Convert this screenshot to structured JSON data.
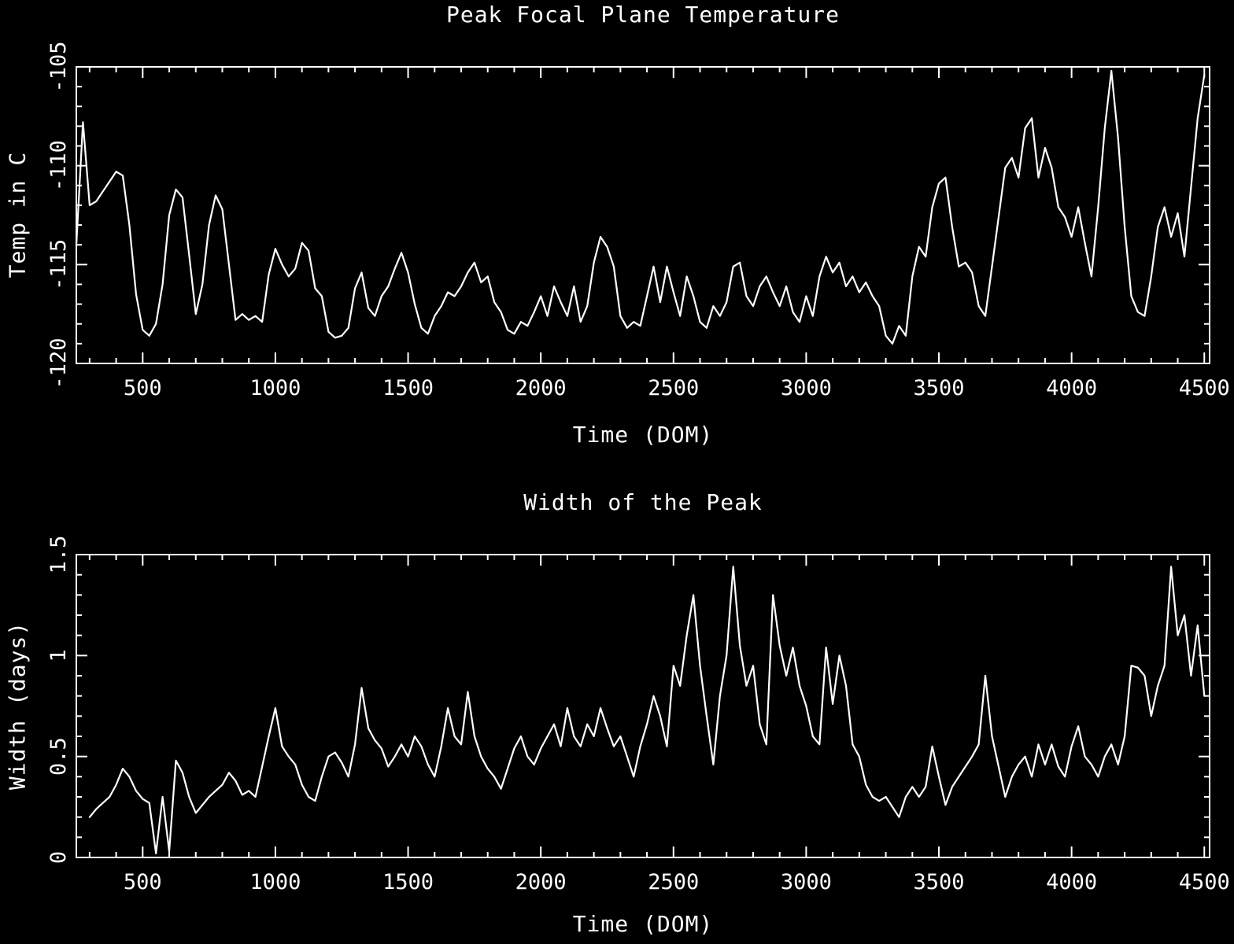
{
  "figure": {
    "background": "#000000",
    "foreground": "#ffffff"
  },
  "chart_data": [
    {
      "type": "line",
      "series_name": "temperature",
      "title": "Peak Focal Plane Temperature",
      "xlabel": "Time (DOM)",
      "ylabel": "Temp in C",
      "grid": false,
      "legend": false,
      "xlim": [
        250,
        4520
      ],
      "ylim": [
        -120,
        -105
      ],
      "xticks": [
        500,
        1000,
        1500,
        2000,
        2500,
        3000,
        3500,
        4000,
        4500
      ],
      "xtick_labels": [
        "500",
        "1000",
        "1500",
        "2000",
        "2500",
        "3000",
        "3500",
        "4000",
        "4500"
      ],
      "x_major_step": 500,
      "x_minor_step": 100,
      "yticks": [
        -120,
        -115,
        -110,
        -105
      ],
      "ytick_labels": [
        "-120",
        "-115",
        "-110",
        "-105"
      ],
      "y_minor_step": 1,
      "x_start": 250,
      "x_step": 25,
      "y": [
        -114.0,
        -107.8,
        -112.0,
        -111.8,
        -111.3,
        -110.8,
        -110.3,
        -110.5,
        -113.0,
        -116.5,
        -118.3,
        -118.6,
        -118.0,
        -116.0,
        -112.5,
        -111.2,
        -111.6,
        -114.5,
        -117.5,
        -116.0,
        -113.0,
        -111.5,
        -112.2,
        -115.0,
        -117.8,
        -117.5,
        -117.8,
        -117.6,
        -117.9,
        -115.5,
        -114.2,
        -115.0,
        -115.6,
        -115.2,
        -113.9,
        -114.3,
        -116.2,
        -116.6,
        -118.4,
        -118.7,
        -118.6,
        -118.2,
        -116.2,
        -115.4,
        -117.2,
        -117.6,
        -116.6,
        -116.1,
        -115.2,
        -114.4,
        -115.4,
        -117.0,
        -118.2,
        -118.5,
        -117.6,
        -117.1,
        -116.4,
        -116.6,
        -116.1,
        -115.4,
        -114.9,
        -115.9,
        -115.6,
        -116.9,
        -117.4,
        -118.3,
        -118.5,
        -117.9,
        -118.1,
        -117.4,
        -116.6,
        -117.6,
        -116.1,
        -116.9,
        -117.6,
        -116.1,
        -117.9,
        -117.1,
        -114.9,
        -113.6,
        -114.1,
        -115.1,
        -117.6,
        -118.2,
        -117.9,
        -118.1,
        -116.6,
        -115.1,
        -116.9,
        -115.1,
        -116.4,
        -117.6,
        -115.6,
        -116.6,
        -117.9,
        -118.2,
        -117.1,
        -117.6,
        -116.9,
        -115.1,
        -114.9,
        -116.6,
        -117.1,
        -116.1,
        -115.6,
        -116.4,
        -117.1,
        -116.1,
        -117.4,
        -117.9,
        -116.6,
        -117.6,
        -115.6,
        -114.6,
        -115.4,
        -114.9,
        -116.1,
        -115.6,
        -116.4,
        -115.9,
        -116.6,
        -117.1,
        -118.6,
        -119.0,
        -118.1,
        -118.6,
        -115.6,
        -114.1,
        -114.6,
        -112.1,
        -110.9,
        -110.6,
        -113.1,
        -115.1,
        -114.9,
        -115.4,
        -117.1,
        -117.6,
        -115.1,
        -112.6,
        -110.1,
        -109.6,
        -110.6,
        -108.1,
        -107.6,
        -110.6,
        -109.1,
        -110.1,
        -112.1,
        -112.6,
        -113.6,
        -112.1,
        -113.9,
        -115.6,
        -112.1,
        -108.1,
        -105.2,
        -108.6,
        -113.1,
        -116.6,
        -117.4,
        -117.6,
        -115.6,
        -113.1,
        -112.1,
        -113.6,
        -112.4,
        -114.6,
        -111.1,
        -107.6,
        -105.4
      ]
    },
    {
      "type": "line",
      "series_name": "width",
      "title": "Width of the Peak",
      "xlabel": "Time (DOM)",
      "ylabel": "Width (days)",
      "grid": false,
      "legend": false,
      "xlim": [
        250,
        4520
      ],
      "ylim": [
        0,
        1.5
      ],
      "xticks": [
        500,
        1000,
        1500,
        2000,
        2500,
        3000,
        3500,
        4000,
        4500
      ],
      "xtick_labels": [
        "500",
        "1000",
        "1500",
        "2000",
        "2500",
        "3000",
        "3500",
        "4000",
        "4500"
      ],
      "x_major_step": 500,
      "x_minor_step": 100,
      "yticks": [
        0,
        0.5,
        1,
        1.5
      ],
      "ytick_labels": [
        "0",
        "0.5",
        "1",
        "1.5"
      ],
      "y_minor_step": 0.1,
      "x_start": 300,
      "x_step": 25,
      "y": [
        0.2,
        0.24,
        0.27,
        0.3,
        0.36,
        0.44,
        0.4,
        0.33,
        0.29,
        0.27,
        0.02,
        0.3,
        0.03,
        0.48,
        0.42,
        0.3,
        0.22,
        0.26,
        0.3,
        0.33,
        0.36,
        0.42,
        0.38,
        0.31,
        0.33,
        0.3,
        0.45,
        0.6,
        0.74,
        0.55,
        0.5,
        0.46,
        0.36,
        0.3,
        0.28,
        0.4,
        0.5,
        0.52,
        0.47,
        0.4,
        0.56,
        0.84,
        0.64,
        0.58,
        0.54,
        0.45,
        0.5,
        0.56,
        0.5,
        0.6,
        0.55,
        0.46,
        0.4,
        0.55,
        0.74,
        0.6,
        0.56,
        0.82,
        0.6,
        0.5,
        0.44,
        0.4,
        0.34,
        0.44,
        0.54,
        0.6,
        0.5,
        0.46,
        0.54,
        0.6,
        0.66,
        0.55,
        0.74,
        0.6,
        0.55,
        0.66,
        0.6,
        0.74,
        0.64,
        0.55,
        0.6,
        0.5,
        0.4,
        0.55,
        0.66,
        0.8,
        0.7,
        0.55,
        0.95,
        0.85,
        1.1,
        1.3,
        0.95,
        0.7,
        0.46,
        0.8,
        1.0,
        1.44,
        1.05,
        0.85,
        0.95,
        0.66,
        0.56,
        1.3,
        1.05,
        0.9,
        1.04,
        0.85,
        0.75,
        0.6,
        0.56,
        1.04,
        0.76,
        1.0,
        0.85,
        0.56,
        0.5,
        0.36,
        0.3,
        0.28,
        0.3,
        0.25,
        0.2,
        0.3,
        0.35,
        0.3,
        0.35,
        0.55,
        0.4,
        0.26,
        0.35,
        0.4,
        0.45,
        0.5,
        0.56,
        0.9,
        0.6,
        0.45,
        0.3,
        0.4,
        0.46,
        0.5,
        0.4,
        0.56,
        0.46,
        0.56,
        0.45,
        0.4,
        0.55,
        0.65,
        0.5,
        0.46,
        0.4,
        0.5,
        0.56,
        0.46,
        0.6,
        0.95,
        0.94,
        0.9,
        0.7,
        0.85,
        0.95,
        1.44,
        1.1,
        1.2,
        0.9,
        1.15,
        0.8
      ]
    }
  ]
}
